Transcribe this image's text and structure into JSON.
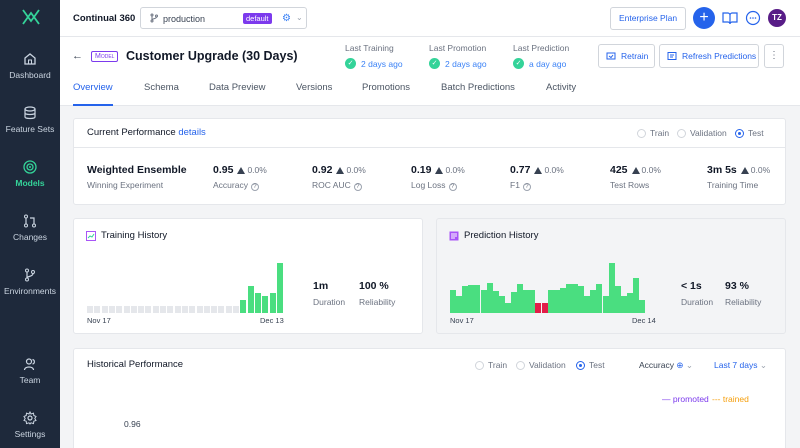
{
  "app": {
    "brand": "Continual 360"
  },
  "sidebar": {
    "items": [
      {
        "label": "Dashboard",
        "icon": "home-icon"
      },
      {
        "label": "Feature Sets",
        "icon": "database-icon"
      },
      {
        "label": "Models",
        "icon": "target-icon",
        "active": true
      },
      {
        "label": "Changes",
        "icon": "pull-request-icon"
      },
      {
        "label": "Environments",
        "icon": "branch-icon"
      },
      {
        "label": "Team",
        "icon": "team-icon"
      },
      {
        "label": "Settings",
        "icon": "gear-icon"
      }
    ]
  },
  "topbar": {
    "environment": "production",
    "environment_badge": "default",
    "plan_label": "Enterprise Plan",
    "add_label": "+",
    "avatar_initials": "TZ"
  },
  "model": {
    "badge": "Model",
    "title": "Customer Upgrade (30 Days)",
    "meta": [
      {
        "label": "Last Training",
        "value": "2 days ago"
      },
      {
        "label": "Last Promotion",
        "value": "2 days ago"
      },
      {
        "label": "Last Prediction",
        "value": "a day ago"
      }
    ],
    "actions": {
      "retrain": "Retrain",
      "refresh": "Refresh Predictions"
    },
    "tabs": [
      "Overview",
      "Schema",
      "Data Preview",
      "Versions",
      "Promotions",
      "Batch Predictions",
      "Activity"
    ],
    "active_tab": "Overview"
  },
  "current_performance": {
    "title": "Current Performance",
    "details_link": "details",
    "splits": [
      "Train",
      "Validation",
      "Test"
    ],
    "selected_split": "Test",
    "winner": {
      "name": "Weighted Ensemble",
      "sub": "Winning Experiment"
    },
    "metrics": [
      {
        "value": "0.95",
        "delta": "0.0%",
        "label": "Accuracy",
        "help": true
      },
      {
        "value": "0.92",
        "delta": "0.0%",
        "label": "ROC AUC",
        "help": true
      },
      {
        "value": "0.19",
        "delta": "0.0%",
        "label": "Log Loss",
        "help": true
      },
      {
        "value": "0.77",
        "delta": "0.0%",
        "label": "F1",
        "help": true
      },
      {
        "value": "425",
        "delta": "0.0%",
        "label": "Test Rows",
        "help": false
      },
      {
        "value": "3m 5s",
        "delta": "0.0%",
        "label": "Training Time",
        "help": false
      }
    ]
  },
  "training_history": {
    "title": "Training History",
    "start_label": "Nov 17",
    "end_label": "Dec 13",
    "duration": {
      "value": "1m",
      "label": "Duration"
    },
    "reliability": {
      "value": "100 %",
      "label": "Reliability"
    }
  },
  "prediction_history": {
    "title": "Prediction History",
    "start_label": "Nov 17",
    "end_label": "Dec 14",
    "duration": {
      "value": "< 1s",
      "label": "Duration"
    },
    "reliability": {
      "value": "93 %",
      "label": "Reliability"
    }
  },
  "historical_performance": {
    "title": "Historical Performance",
    "splits": [
      "Train",
      "Validation",
      "Test"
    ],
    "selected_split": "Test",
    "metric_select": "Accuracy",
    "range_select": "Last 7 days",
    "legend_promoted": "promoted",
    "legend_trained": "trained",
    "y_tick": "0.96"
  },
  "chart_data": [
    {
      "type": "bar",
      "name": "training_history",
      "values": [
        1,
        1,
        1,
        1,
        1,
        1,
        1,
        1,
        1,
        1,
        1,
        1,
        1,
        1,
        1,
        1,
        1,
        1,
        1,
        1,
        1,
        2,
        4,
        3,
        2.5,
        3,
        7.5
      ],
      "status": [
        "none",
        "none",
        "none",
        "none",
        "none",
        "none",
        "none",
        "none",
        "none",
        "none",
        "none",
        "none",
        "none",
        "none",
        "none",
        "none",
        "none",
        "none",
        "none",
        "none",
        "none",
        "ok",
        "ok",
        "ok",
        "ok",
        "ok",
        "ok"
      ],
      "colors": {
        "ok": "#4ade80",
        "none": "#e5e7eb"
      }
    },
    {
      "type": "bar",
      "name": "prediction_history",
      "values": [
        3.5,
        2.5,
        4,
        4.2,
        4.2,
        3.5,
        4.5,
        3.3,
        2.5,
        1.5,
        3.2,
        4.3,
        3.5,
        3.5,
        1.5,
        1.5,
        3.4,
        3.5,
        3.8,
        4.3,
        4.3,
        4,
        2.5,
        3.5,
        4.3,
        2.5,
        7.5,
        4,
        2.5,
        3,
        5.3,
        2
      ],
      "status": [
        "ok",
        "ok",
        "ok",
        "ok",
        "ok",
        "ok",
        "ok",
        "ok",
        "ok",
        "ok",
        "ok",
        "ok",
        "ok",
        "ok",
        "fail",
        "fail",
        "ok",
        "ok",
        "ok",
        "ok",
        "ok",
        "ok",
        "ok",
        "ok",
        "ok",
        "ok",
        "ok",
        "ok",
        "ok",
        "ok",
        "ok",
        "ok"
      ],
      "colors": {
        "ok": "#4ade80",
        "fail": "#e11d48"
      }
    }
  ]
}
